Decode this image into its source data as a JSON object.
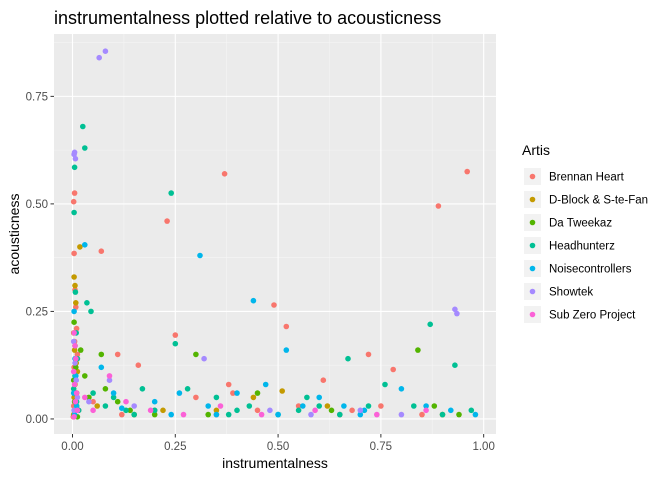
{
  "chart_data": {
    "type": "scatter",
    "title": "instrumentalness plotted relative to acousticness",
    "xlabel": "instrumentalness",
    "ylabel": "acousticness",
    "xlim": [
      -0.045,
      1.03
    ],
    "ylim": [
      -0.035,
      0.895
    ],
    "x_ticks": [
      0,
      0.25,
      0.5,
      0.75,
      1
    ],
    "x_tick_labels": [
      "0.00",
      "0.25",
      "0.50",
      "0.75",
      "1.00"
    ],
    "y_ticks": [
      0,
      0.25,
      0.5,
      0.75
    ],
    "y_tick_labels": [
      "0.00",
      "0.25",
      "0.50",
      "0.75"
    ],
    "grid": true,
    "panel_background": "#ebebeb",
    "legend": {
      "title": "Artis",
      "position": "right"
    },
    "series": [
      {
        "name": "Brennan Heart",
        "color": "#f8766d",
        "points": [
          [
            0.005,
            0.525
          ],
          [
            0.003,
            0.505
          ],
          [
            0.004,
            0.385
          ],
          [
            0.006,
            0.3
          ],
          [
            0.008,
            0.26
          ],
          [
            0.01,
            0.21
          ],
          [
            0.005,
            0.18
          ],
          [
            0.012,
            0.15
          ],
          [
            0.004,
            0.12
          ],
          [
            0.007,
            0.09
          ],
          [
            0.01,
            0.06
          ],
          [
            0.003,
            0.03
          ],
          [
            0.015,
            0.02
          ],
          [
            0.002,
            0.005
          ],
          [
            0.07,
            0.39
          ],
          [
            0.11,
            0.15
          ],
          [
            0.16,
            0.125
          ],
          [
            0.23,
            0.46
          ],
          [
            0.25,
            0.195
          ],
          [
            0.37,
            0.57
          ],
          [
            0.38,
            0.08
          ],
          [
            0.39,
            0.06
          ],
          [
            0.49,
            0.265
          ],
          [
            0.52,
            0.215
          ],
          [
            0.61,
            0.09
          ],
          [
            0.72,
            0.15
          ],
          [
            0.78,
            0.115
          ],
          [
            0.89,
            0.495
          ],
          [
            0.96,
            0.575
          ],
          [
            0.3,
            0.05
          ],
          [
            0.45,
            0.02
          ],
          [
            0.55,
            0.03
          ],
          [
            0.65,
            0.01
          ],
          [
            0.75,
            0.03
          ],
          [
            0.85,
            0.01
          ],
          [
            0.2,
            0.02
          ],
          [
            0.05,
            0.04
          ],
          [
            0.12,
            0.01
          ],
          [
            0.35,
            0.01
          ],
          [
            0.68,
            0.02
          ]
        ]
      },
      {
        "name": "D-Block & S-te-Fan",
        "color": "#c49a00",
        "points": [
          [
            0.004,
            0.33
          ],
          [
            0.006,
            0.31
          ],
          [
            0.008,
            0.27
          ],
          [
            0.003,
            0.2
          ],
          [
            0.005,
            0.16
          ],
          [
            0.009,
            0.13
          ],
          [
            0.012,
            0.11
          ],
          [
            0.006,
            0.08
          ],
          [
            0.004,
            0.05
          ],
          [
            0.01,
            0.03
          ],
          [
            0.003,
            0.01
          ],
          [
            0.018,
            0.4
          ],
          [
            0.06,
            0.03
          ],
          [
            0.22,
            0.02
          ],
          [
            0.51,
            0.065
          ],
          [
            0.44,
            0.05
          ],
          [
            0.62,
            0.03
          ],
          [
            0.9,
            0.01
          ],
          [
            0.35,
            0.02
          ],
          [
            0.15,
            0.01
          ]
        ]
      },
      {
        "name": "Da Tweekaz",
        "color": "#53b400",
        "points": [
          [
            0.004,
            0.225
          ],
          [
            0.006,
            0.17
          ],
          [
            0.008,
            0.12
          ],
          [
            0.003,
            0.09
          ],
          [
            0.01,
            0.06
          ],
          [
            0.005,
            0.04
          ],
          [
            0.007,
            0.02
          ],
          [
            0.012,
            0.005
          ],
          [
            0.02,
            0.16
          ],
          [
            0.03,
            0.1
          ],
          [
            0.04,
            0.05
          ],
          [
            0.07,
            0.15
          ],
          [
            0.08,
            0.07
          ],
          [
            0.11,
            0.04
          ],
          [
            0.14,
            0.02
          ],
          [
            0.2,
            0.01
          ],
          [
            0.3,
            0.15
          ],
          [
            0.33,
            0.01
          ],
          [
            0.45,
            0.06
          ],
          [
            0.63,
            0.02
          ],
          [
            0.84,
            0.16
          ],
          [
            0.88,
            0.03
          ],
          [
            0.94,
            0.01
          ]
        ]
      },
      {
        "name": "Headhunterz",
        "color": "#00c094",
        "points": [
          [
            0.005,
            0.585
          ],
          [
            0.004,
            0.48
          ],
          [
            0.007,
            0.295
          ],
          [
            0.009,
            0.2
          ],
          [
            0.012,
            0.14
          ],
          [
            0.006,
            0.1
          ],
          [
            0.003,
            0.07
          ],
          [
            0.01,
            0.04
          ],
          [
            0.015,
            0.02
          ],
          [
            0.025,
            0.68
          ],
          [
            0.03,
            0.63
          ],
          [
            0.035,
            0.27
          ],
          [
            0.045,
            0.25
          ],
          [
            0.05,
            0.06
          ],
          [
            0.08,
            0.03
          ],
          [
            0.1,
            0.05
          ],
          [
            0.13,
            0.02
          ],
          [
            0.17,
            0.07
          ],
          [
            0.24,
            0.525
          ],
          [
            0.25,
            0.175
          ],
          [
            0.28,
            0.07
          ],
          [
            0.35,
            0.05
          ],
          [
            0.4,
            0.02
          ],
          [
            0.43,
            0.03
          ],
          [
            0.5,
            0.01
          ],
          [
            0.57,
            0.05
          ],
          [
            0.6,
            0.03
          ],
          [
            0.67,
            0.14
          ],
          [
            0.72,
            0.03
          ],
          [
            0.76,
            0.08
          ],
          [
            0.83,
            0.03
          ],
          [
            0.87,
            0.22
          ],
          [
            0.93,
            0.125
          ],
          [
            0.97,
            0.02
          ],
          [
            0.2,
            0.02
          ],
          [
            0.65,
            0.01
          ],
          [
            0.9,
            0.01
          ],
          [
            0.55,
            0.02
          ],
          [
            0.38,
            0.01
          ],
          [
            0.15,
            0.01
          ]
        ]
      },
      {
        "name": "Noisecontrollers",
        "color": "#00b6eb",
        "points": [
          [
            0.004,
            0.25
          ],
          [
            0.006,
            0.14
          ],
          [
            0.008,
            0.1
          ],
          [
            0.003,
            0.06
          ],
          [
            0.01,
            0.03
          ],
          [
            0.005,
            0.01
          ],
          [
            0.03,
            0.405
          ],
          [
            0.07,
            0.12
          ],
          [
            0.1,
            0.06
          ],
          [
            0.12,
            0.025
          ],
          [
            0.2,
            0.04
          ],
          [
            0.26,
            0.06
          ],
          [
            0.31,
            0.38
          ],
          [
            0.33,
            0.03
          ],
          [
            0.4,
            0.06
          ],
          [
            0.44,
            0.275
          ],
          [
            0.47,
            0.08
          ],
          [
            0.52,
            0.16
          ],
          [
            0.56,
            0.03
          ],
          [
            0.6,
            0.05
          ],
          [
            0.66,
            0.03
          ],
          [
            0.71,
            0.02
          ],
          [
            0.8,
            0.07
          ],
          [
            0.86,
            0.03
          ],
          [
            0.92,
            0.02
          ],
          [
            0.98,
            0.01
          ],
          [
            0.5,
            0.01
          ],
          [
            0.7,
            0.01
          ],
          [
            0.35,
            0.01
          ],
          [
            0.24,
            0.01
          ]
        ]
      },
      {
        "name": "Showtek",
        "color": "#a58aff",
        "points": [
          [
            0.005,
            0.62
          ],
          [
            0.004,
            0.615
          ],
          [
            0.007,
            0.605
          ],
          [
            0.065,
            0.84
          ],
          [
            0.08,
            0.855
          ],
          [
            0.003,
            0.18
          ],
          [
            0.006,
            0.13
          ],
          [
            0.009,
            0.09
          ],
          [
            0.012,
            0.05
          ],
          [
            0.004,
            0.02
          ],
          [
            0.04,
            0.04
          ],
          [
            0.09,
            0.09
          ],
          [
            0.15,
            0.03
          ],
          [
            0.32,
            0.14
          ],
          [
            0.48,
            0.02
          ],
          [
            0.58,
            0.01
          ],
          [
            0.7,
            0.02
          ],
          [
            0.93,
            0.255
          ],
          [
            0.935,
            0.245
          ],
          [
            0.8,
            0.01
          ]
        ]
      },
      {
        "name": "Sub Zero Project",
        "color": "#fb61d7",
        "points": [
          [
            0.004,
            0.2
          ],
          [
            0.006,
            0.17
          ],
          [
            0.008,
            0.14
          ],
          [
            0.003,
            0.11
          ],
          [
            0.005,
            0.08
          ],
          [
            0.01,
            0.06
          ],
          [
            0.007,
            0.04
          ],
          [
            0.012,
            0.02
          ],
          [
            0.004,
            0.005
          ],
          [
            0.03,
            0.05
          ],
          [
            0.05,
            0.02
          ],
          [
            0.09,
            0.1
          ],
          [
            0.13,
            0.04
          ],
          [
            0.19,
            0.02
          ],
          [
            0.27,
            0.01
          ],
          [
            0.36,
            0.03
          ],
          [
            0.46,
            0.01
          ],
          [
            0.59,
            0.02
          ],
          [
            0.74,
            0.01
          ],
          [
            0.86,
            0.02
          ]
        ]
      }
    ]
  }
}
